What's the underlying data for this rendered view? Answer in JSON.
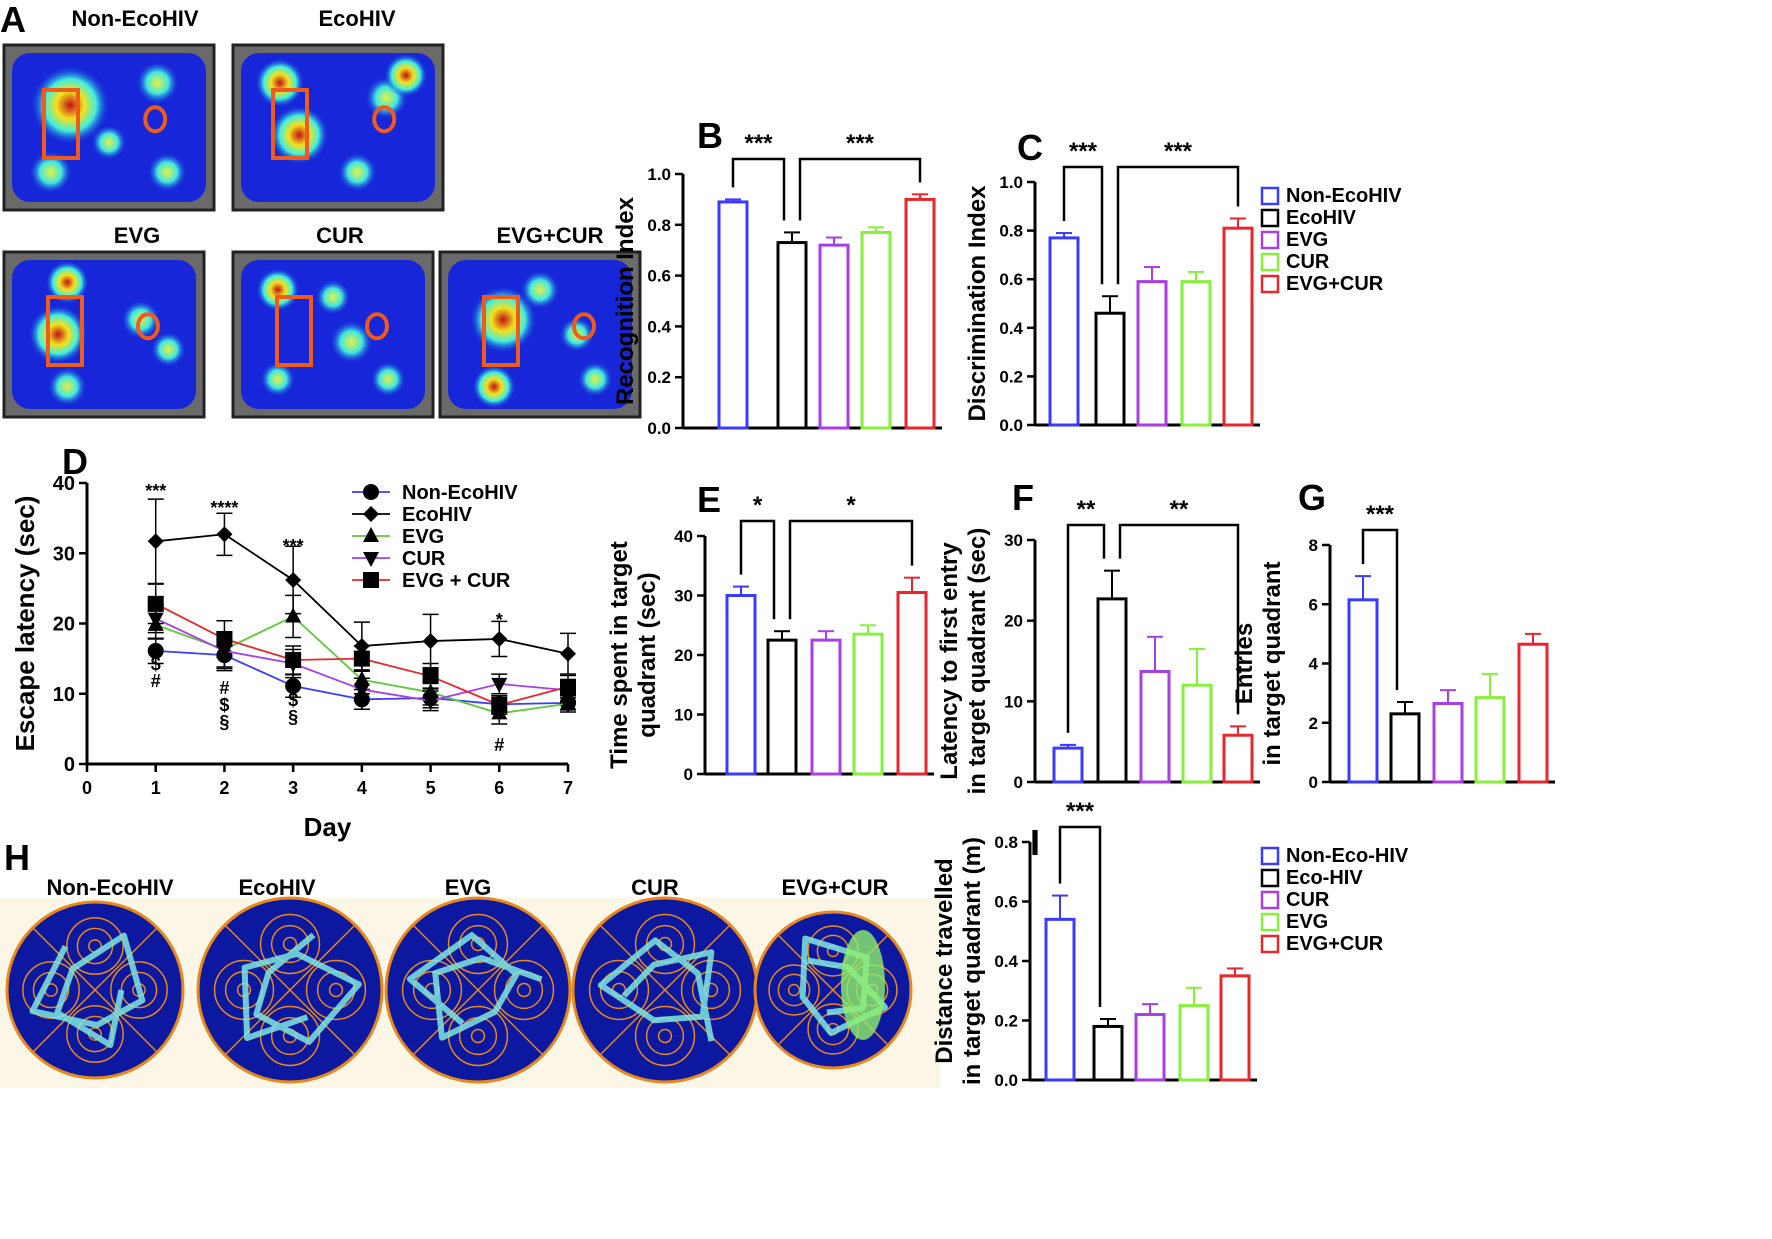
{
  "panel_letters": [
    "A",
    "B",
    "C",
    "D",
    "E",
    "F",
    "G",
    "H",
    "I"
  ],
  "panel_a": {
    "labels": [
      "Non-EcoHIV",
      "EcoHIV",
      "EVG",
      "CUR",
      "EVG+CUR"
    ]
  },
  "panel_h": {
    "labels": [
      "Non-EcoHIV",
      "EcoHIV",
      "EVG",
      "CUR",
      "EVG+CUR"
    ]
  },
  "colors": {
    "Non-EcoHIV": "#3b3bff",
    "EcoHIV": "#000000",
    "EVG": "#a83ee6",
    "CUR": "#86f03c",
    "EVG+CUR": "#e8262b"
  },
  "legend_bc": [
    "Non-EcoHIV",
    "EcoHIV",
    "EVG",
    "CUR",
    "EVG+CUR"
  ],
  "legend_i": [
    {
      "label": "Non-Eco-HIV",
      "color": "#3b3bff"
    },
    {
      "label": "Eco-HIV",
      "color": "#000000"
    },
    {
      "label": "CUR",
      "color": "#a83ee6"
    },
    {
      "label": "EVG",
      "color": "#86f03c"
    },
    {
      "label": "EVG+CUR",
      "color": "#e8262b"
    }
  ],
  "chart_data": [
    {
      "id": "B",
      "type": "bar",
      "ylabel": "Recognition Index",
      "ylim": [
        0,
        1.0
      ],
      "yticks": [
        "0.0",
        "0.2",
        "0.4",
        "0.6",
        "0.8",
        "1.0"
      ],
      "categories": [
        "Non-EcoHIV",
        "EcoHIV",
        "EVG",
        "CUR",
        "EVG+CUR"
      ],
      "values": [
        0.89,
        0.73,
        0.72,
        0.77,
        0.9
      ],
      "errors": [
        0.01,
        0.04,
        0.03,
        0.02,
        0.02
      ],
      "significance": [
        {
          "from": 0,
          "to": 1,
          "label": "***"
        },
        {
          "from": 1,
          "to": 4,
          "label": "***"
        }
      ]
    },
    {
      "id": "C",
      "type": "bar",
      "ylabel": "Discrimination Index",
      "ylim": [
        0,
        1.0
      ],
      "yticks": [
        "0.0",
        "0.2",
        "0.4",
        "0.6",
        "0.8",
        "1.0"
      ],
      "categories": [
        "Non-EcoHIV",
        "EcoHIV",
        "EVG",
        "CUR",
        "EVG+CUR"
      ],
      "values": [
        0.77,
        0.46,
        0.59,
        0.59,
        0.81
      ],
      "errors": [
        0.02,
        0.07,
        0.06,
        0.04,
        0.04
      ],
      "significance": [
        {
          "from": 0,
          "to": 1,
          "label": "***"
        },
        {
          "from": 1,
          "to": 4,
          "label": "***"
        }
      ]
    },
    {
      "id": "D",
      "type": "line",
      "xlabel": "Day",
      "ylabel": "Escape latency (sec)",
      "xlim": [
        0,
        7
      ],
      "ylim": [
        0,
        40
      ],
      "xticks": [
        "0",
        "1",
        "2",
        "3",
        "4",
        "5",
        "6",
        "7"
      ],
      "yticks": [
        "0",
        "10",
        "20",
        "30",
        "40"
      ],
      "x": [
        1,
        2,
        3,
        4,
        5,
        6,
        7
      ],
      "series": [
        {
          "name": "Non-EcoHIV",
          "marker": "circle",
          "color": "#3b3bff",
          "values": [
            16.1,
            15.5,
            11.1,
            9.2,
            9.4,
            8.5,
            8.7
          ],
          "errors": [
            1.8,
            2.2,
            1.6,
            1.4,
            1.4,
            1.2,
            1.0
          ]
        },
        {
          "name": "EcoHIV",
          "marker": "diamond",
          "color": "#000000",
          "values": [
            31.7,
            32.7,
            26.2,
            16.8,
            17.5,
            17.8,
            15.7
          ],
          "errors": [
            6.0,
            3.0,
            4.8,
            3.4,
            3.8,
            2.5,
            2.9
          ]
        },
        {
          "name": "EVG",
          "marker": "triangle-up",
          "color": "#5cc93a",
          "values": [
            19.8,
            16.3,
            21.0,
            12.0,
            10.2,
            7.2,
            8.6
          ],
          "errors": [
            2.0,
            2.5,
            3.0,
            2.0,
            1.8,
            1.5,
            1.2
          ]
        },
        {
          "name": "CUR",
          "marker": "triangle-down",
          "color": "#a83ee6",
          "values": [
            20.7,
            16.1,
            14.3,
            10.6,
            9.0,
            11.4,
            10.5
          ],
          "errors": [
            2.0,
            2.5,
            2.0,
            1.6,
            1.4,
            1.4,
            1.5
          ]
        },
        {
          "name": "EVG + CUR",
          "marker": "square",
          "color": "#e8262b",
          "values": [
            22.8,
            17.8,
            14.8,
            15.0,
            12.5,
            8.4,
            11.0
          ],
          "errors": [
            2.8,
            2.6,
            2.0,
            1.8,
            1.8,
            1.3,
            1.6
          ]
        }
      ],
      "annotations_above": [
        {
          "x": 1,
          "label": "***"
        },
        {
          "x": 2,
          "label": "****"
        },
        {
          "x": 3,
          "label": "***"
        },
        {
          "x": 6,
          "label": "*"
        }
      ],
      "annotations_below": [
        {
          "x": 1,
          "label": [
            "$",
            "#"
          ]
        },
        {
          "x": 2,
          "label": [
            "#",
            "$",
            "§"
          ]
        },
        {
          "x": 3,
          "label": [
            "$",
            "§"
          ]
        },
        {
          "x": 6,
          "label": [
            "#"
          ]
        }
      ]
    },
    {
      "id": "E",
      "type": "bar",
      "ylabel": [
        "Time spent in target",
        "quadrant (sec)"
      ],
      "ylim": [
        0,
        40
      ],
      "yticks": [
        "0",
        "10",
        "20",
        "30",
        "40"
      ],
      "categories": [
        "Non-EcoHIV",
        "EcoHIV",
        "EVG",
        "CUR",
        "EVG+CUR"
      ],
      "values": [
        30,
        22.5,
        22.5,
        23.5,
        30.5
      ],
      "errors": [
        1.5,
        1.5,
        1.5,
        1.5,
        2.5
      ],
      "significance": [
        {
          "from": 0,
          "to": 1,
          "label": "*"
        },
        {
          "from": 1,
          "to": 4,
          "label": "*"
        }
      ]
    },
    {
      "id": "F",
      "type": "bar",
      "ylabel": [
        "Latency to first entry",
        "in target quadrant (sec)"
      ],
      "ylim": [
        0,
        30
      ],
      "yticks": [
        "0",
        "10",
        "20",
        "30"
      ],
      "categories": [
        "Non-EcoHIV",
        "EcoHIV",
        "EVG",
        "CUR",
        "EVG+CUR"
      ],
      "values": [
        4.2,
        22.7,
        13.7,
        12.0,
        5.8
      ],
      "errors": [
        0.4,
        3.5,
        4.3,
        4.5,
        1.1
      ],
      "significance": [
        {
          "from": 0,
          "to": 1,
          "label": "**"
        },
        {
          "from": 1,
          "to": 4,
          "label": "**"
        }
      ]
    },
    {
      "id": "G",
      "type": "bar",
      "ylabel": [
        "Entries",
        "in target quadrant"
      ],
      "ylim": [
        0,
        8
      ],
      "yticks": [
        "0",
        "2",
        "4",
        "6",
        "8"
      ],
      "categories": [
        "Non-EcoHIV",
        "EcoHIV",
        "EVG",
        "CUR",
        "EVG+CUR"
      ],
      "values": [
        6.15,
        2.3,
        2.65,
        2.85,
        4.65
      ],
      "errors": [
        0.8,
        0.4,
        0.45,
        0.8,
        0.35
      ],
      "significance": [
        {
          "from": 0,
          "to": 1,
          "label": "***"
        }
      ]
    },
    {
      "id": "I",
      "type": "bar",
      "ylabel": [
        "Distance travelled",
        "in target quadrant (m)"
      ],
      "ylim": [
        0,
        0.8
      ],
      "yticks": [
        "0.0",
        "0.2",
        "0.4",
        "0.6",
        "0.8"
      ],
      "categories": [
        "Non-Eco-HIV",
        "Eco-HIV",
        "CUR",
        "EVG",
        "EVG+CUR"
      ],
      "values": [
        0.54,
        0.18,
        0.22,
        0.25,
        0.35
      ],
      "errors": [
        0.08,
        0.025,
        0.035,
        0.06,
        0.025
      ],
      "significance": [
        {
          "from": 0,
          "to": 1,
          "label": "***"
        }
      ]
    }
  ]
}
